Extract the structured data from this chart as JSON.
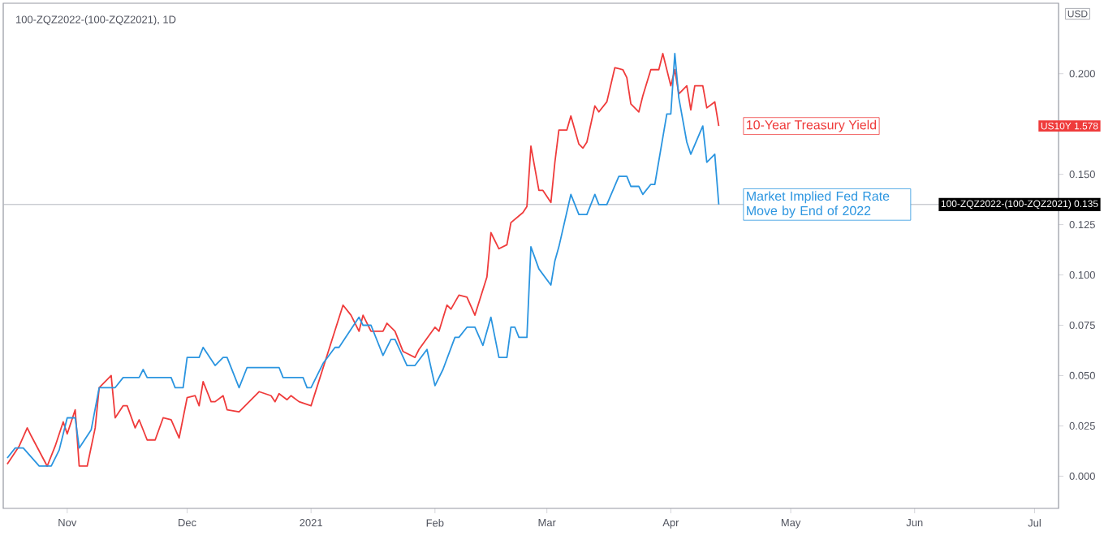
{
  "chart_data": {
    "type": "line",
    "title": "100-ZQZ2022-(100-ZQZ2021), 1D",
    "ylabel": "USD",
    "xlim": [
      "2020-10-16",
      "2021-07-07"
    ],
    "ylim": [
      -0.016,
      0.235
    ],
    "xticks": [
      {
        "value": "2020-11-01",
        "label": "Nov"
      },
      {
        "value": "2020-12-01",
        "label": "Dec"
      },
      {
        "value": "2021-01-01",
        "label": "2021"
      },
      {
        "value": "2021-02-01",
        "label": "Feb"
      },
      {
        "value": "2021-03-01",
        "label": "Mar"
      },
      {
        "value": "2021-04-01",
        "label": "Apr"
      },
      {
        "value": "2021-05-01",
        "label": "May"
      },
      {
        "value": "2021-06-01",
        "label": "Jun"
      },
      {
        "value": "2021-07-01",
        "label": "Jul"
      }
    ],
    "yticks": [
      {
        "value": 0,
        "label": "0.000"
      },
      {
        "value": 0.025,
        "label": "0.025"
      },
      {
        "value": 0.05,
        "label": "0.050"
      },
      {
        "value": 0.075,
        "label": "0.075"
      },
      {
        "value": 0.1,
        "label": "0.100"
      },
      {
        "value": 0.125,
        "label": "0.125"
      },
      {
        "value": 0.15,
        "label": "0.150"
      },
      {
        "value": 0.175,
        "label": null
      },
      {
        "value": 0.2,
        "label": "0.200"
      }
    ],
    "series": [
      {
        "name": "10-Year Treasury Yield",
        "color": "#ef3b3b",
        "x": [
          "2020-10-17",
          "2020-10-20",
          "2020-10-22",
          "2020-10-23",
          "2020-10-27",
          "2020-10-29",
          "2020-10-31",
          "2020-11-01",
          "2020-11-03",
          "2020-11-04",
          "2020-11-06",
          "2020-11-08",
          "2020-11-09",
          "2020-11-12",
          "2020-11-13",
          "2020-11-15",
          "2020-11-16",
          "2020-11-18",
          "2020-11-19",
          "2020-11-21",
          "2020-11-23",
          "2020-11-25",
          "2020-11-27",
          "2020-11-29",
          "2020-12-01",
          "2020-12-03",
          "2020-12-04",
          "2020-12-05",
          "2020-12-07",
          "2020-12-08",
          "2020-12-10",
          "2020-12-11",
          "2020-12-14",
          "2020-12-19",
          "2020-12-22",
          "2020-12-23",
          "2020-12-24",
          "2020-12-26",
          "2020-12-27",
          "2020-12-29",
          "2021-01-01",
          "2021-01-05",
          "2021-01-09",
          "2021-01-11",
          "2021-01-13",
          "2021-01-14",
          "2021-01-16",
          "2021-01-19",
          "2021-01-20",
          "2021-01-22",
          "2021-01-24",
          "2021-01-27",
          "2021-01-28",
          "2021-02-01",
          "2021-02-02",
          "2021-02-04",
          "2021-02-05",
          "2021-02-07",
          "2021-02-09",
          "2021-02-11",
          "2021-02-14",
          "2021-02-15",
          "2021-02-17",
          "2021-02-19",
          "2021-02-20",
          "2021-02-23",
          "2021-02-24",
          "2021-02-25",
          "2021-02-27",
          "2021-02-28",
          "2021-03-02",
          "2021-03-03",
          "2021-03-04",
          "2021-03-06",
          "2021-03-07",
          "2021-03-09",
          "2021-03-10",
          "2021-03-11",
          "2021-03-13",
          "2021-03-14",
          "2021-03-16",
          "2021-03-18",
          "2021-03-20",
          "2021-03-21",
          "2021-03-22",
          "2021-03-24",
          "2021-03-25",
          "2021-03-27",
          "2021-03-29",
          "2021-03-30",
          "2021-04-01",
          "2021-04-02",
          "2021-04-03",
          "2021-04-05",
          "2021-04-06",
          "2021-04-07",
          "2021-04-09",
          "2021-04-10",
          "2021-04-12",
          "2021-04-13"
        ],
        "values": [
          0.006,
          0.015,
          0.024,
          0.02,
          0.005,
          0.015,
          0.027,
          0.021,
          0.033,
          0.005,
          0.005,
          0.024,
          0.044,
          0.05,
          0.029,
          0.035,
          0.035,
          0.024,
          0.028,
          0.018,
          0.018,
          0.029,
          0.028,
          0.019,
          0.039,
          0.04,
          0.035,
          0.047,
          0.037,
          0.037,
          0.04,
          0.033,
          0.032,
          0.042,
          0.04,
          0.037,
          0.041,
          0.038,
          0.04,
          0.037,
          0.035,
          0.06,
          0.085,
          0.08,
          0.072,
          0.08,
          0.072,
          0.072,
          0.076,
          0.072,
          0.062,
          0.059,
          0.063,
          0.074,
          0.072,
          0.085,
          0.083,
          0.09,
          0.089,
          0.08,
          0.099,
          0.121,
          0.113,
          0.115,
          0.126,
          0.131,
          0.134,
          0.164,
          0.142,
          0.142,
          0.136,
          0.156,
          0.172,
          0.172,
          0.179,
          0.165,
          0.163,
          0.166,
          0.184,
          0.181,
          0.186,
          0.203,
          0.202,
          0.198,
          0.185,
          0.181,
          0.189,
          0.202,
          0.202,
          0.21,
          0.194,
          0.202,
          0.19,
          0.194,
          0.182,
          0.194,
          0.194,
          0.183,
          0.186,
          0.174
        ]
      },
      {
        "name": "Market Implied Fed Rate Move by End of 2022",
        "color": "#2b95e0",
        "x": [
          "2020-10-17",
          "2020-10-19",
          "2020-10-21",
          "2020-10-25",
          "2020-10-28",
          "2020-10-30",
          "2020-11-01",
          "2020-11-03",
          "2020-11-04",
          "2020-11-07",
          "2020-11-09",
          "2020-11-13",
          "2020-11-15",
          "2020-11-19",
          "2020-11-20",
          "2020-11-21",
          "2020-11-27",
          "2020-11-28",
          "2020-11-30",
          "2020-12-01",
          "2020-12-04",
          "2020-12-05",
          "2020-12-08",
          "2020-12-10",
          "2020-12-11",
          "2020-12-14",
          "2020-12-16",
          "2020-12-24",
          "2020-12-25",
          "2020-12-30",
          "2020-12-31",
          "2021-01-01",
          "2021-01-04",
          "2021-01-07",
          "2021-01-08",
          "2021-01-13",
          "2021-01-14",
          "2021-01-16",
          "2021-01-19",
          "2021-01-21",
          "2021-01-22",
          "2021-01-25",
          "2021-01-27",
          "2021-01-30",
          "2021-02-01",
          "2021-02-03",
          "2021-02-06",
          "2021-02-07",
          "2021-02-09",
          "2021-02-11",
          "2021-02-13",
          "2021-02-15",
          "2021-02-17",
          "2021-02-19",
          "2021-02-20",
          "2021-02-21",
          "2021-02-22",
          "2021-02-24",
          "2021-02-25",
          "2021-02-27",
          "2021-03-02",
          "2021-03-03",
          "2021-03-04",
          "2021-03-07",
          "2021-03-09",
          "2021-03-11",
          "2021-03-13",
          "2021-03-14",
          "2021-03-16",
          "2021-03-19",
          "2021-03-21",
          "2021-03-22",
          "2021-03-24",
          "2021-03-25",
          "2021-03-27",
          "2021-03-28",
          "2021-03-31",
          "2021-04-01",
          "2021-04-02",
          "2021-04-03",
          "2021-04-05",
          "2021-04-06",
          "2021-04-09",
          "2021-04-10",
          "2021-04-12",
          "2021-04-13"
        ],
        "values": [
          0.009,
          0.014,
          0.014,
          0.005,
          0.005,
          0.013,
          0.029,
          0.029,
          0.014,
          0.023,
          0.044,
          0.044,
          0.049,
          0.049,
          0.053,
          0.049,
          0.049,
          0.044,
          0.044,
          0.059,
          0.059,
          0.064,
          0.055,
          0.059,
          0.059,
          0.044,
          0.054,
          0.054,
          0.049,
          0.049,
          0.044,
          0.044,
          0.056,
          0.064,
          0.064,
          0.079,
          0.075,
          0.075,
          0.06,
          0.068,
          0.068,
          0.055,
          0.055,
          0.063,
          0.045,
          0.053,
          0.069,
          0.069,
          0.074,
          0.074,
          0.065,
          0.079,
          0.059,
          0.059,
          0.074,
          0.074,
          0.069,
          0.069,
          0.114,
          0.103,
          0.095,
          0.107,
          0.114,
          0.14,
          0.13,
          0.13,
          0.14,
          0.135,
          0.135,
          0.149,
          0.149,
          0.144,
          0.144,
          0.14,
          0.145,
          0.145,
          0.18,
          0.18,
          0.21,
          0.188,
          0.166,
          0.16,
          0.174,
          0.156,
          0.16,
          0.135
        ]
      }
    ],
    "ref_lines": [
      {
        "axis": "y",
        "value": 0.135,
        "color": "#b2b5be"
      }
    ],
    "annotations": [
      "US10Y 1.578",
      "100-ZQZ2022-(100-ZQZ2021) 0.135"
    ]
  }
}
